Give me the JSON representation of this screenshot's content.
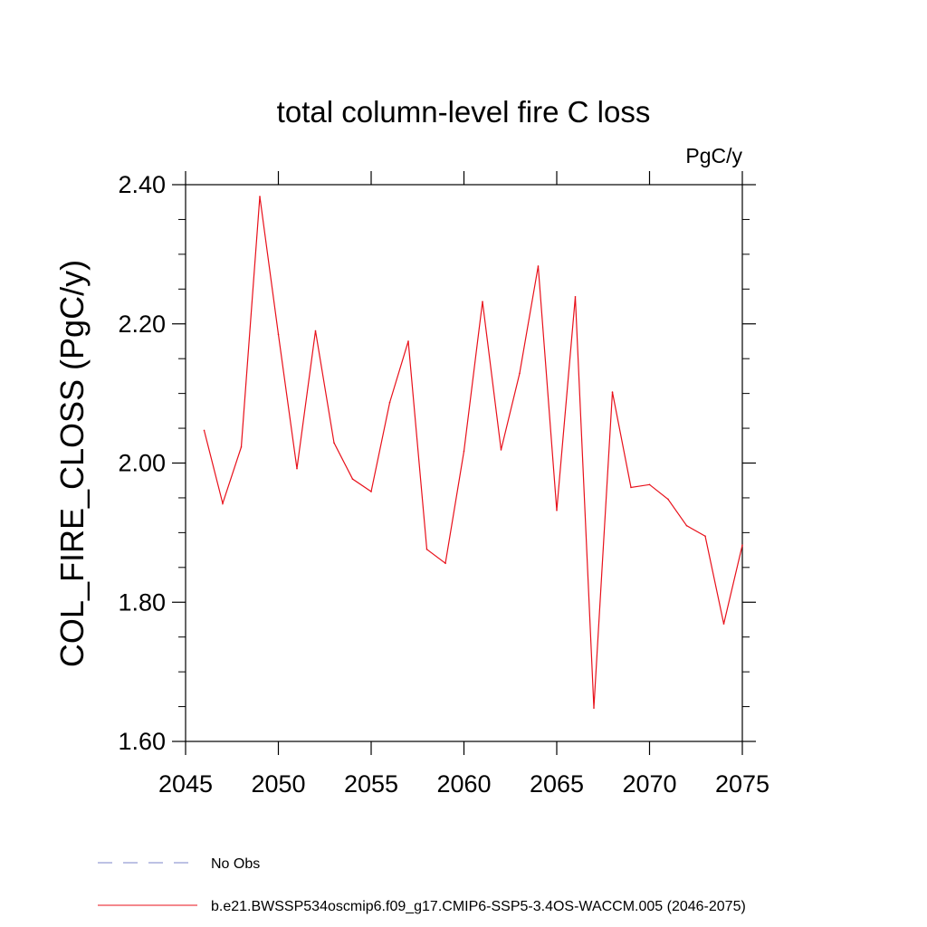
{
  "chart_data": {
    "type": "line",
    "title": "total column-level fire C loss",
    "units": "PgC/y",
    "ylabel": "COL_FIRE_CLOSS  (PgC/y)",
    "xlabel": "",
    "xlim": [
      2045,
      2075
    ],
    "ylim": [
      1.6,
      2.4
    ],
    "xticks": [
      2045,
      2050,
      2055,
      2060,
      2065,
      2070,
      2075
    ],
    "xtick_labels": [
      "2045",
      "2050",
      "2055",
      "2060",
      "2065",
      "2070",
      "2075"
    ],
    "yticks": [
      1.6,
      1.8,
      2.0,
      2.2,
      2.4
    ],
    "ytick_labels": [
      "1.60",
      "1.80",
      "2.00",
      "2.20",
      "2.40"
    ],
    "grid": false,
    "series": [
      {
        "name": "b.e21.BWSSP534oscmip6.f09_g17.CMIP6-SSP5-3.4OS-WACCM.005 (2046-2075)",
        "color": "#e8101a",
        "x": [
          2046,
          2047,
          2048,
          2049,
          2050,
          2051,
          2052,
          2053,
          2054,
          2055,
          2056,
          2057,
          2058,
          2059,
          2060,
          2061,
          2062,
          2063,
          2064,
          2065,
          2066,
          2067,
          2068,
          2069,
          2070,
          2071,
          2072,
          2073,
          2074,
          2075
        ],
        "values": [
          2.047,
          1.942,
          2.023,
          2.383,
          2.185,
          1.992,
          2.19,
          2.029,
          1.977,
          1.959,
          2.087,
          2.175,
          1.876,
          1.856,
          2.017,
          2.232,
          2.019,
          2.129,
          2.283,
          1.932,
          2.239,
          1.648,
          2.102,
          1.965,
          1.969,
          1.948,
          1.91,
          1.895,
          1.769,
          1.882
        ]
      }
    ],
    "legend": [
      {
        "label": "No Obs",
        "style": "dashed",
        "color": "#7b86c8"
      },
      {
        "label": "b.e21.BWSSP534oscmip6.f09_g17.CMIP6-SSP5-3.4OS-WACCM.005 (2046-2075)",
        "style": "solid",
        "color": "#e8101a"
      }
    ]
  }
}
